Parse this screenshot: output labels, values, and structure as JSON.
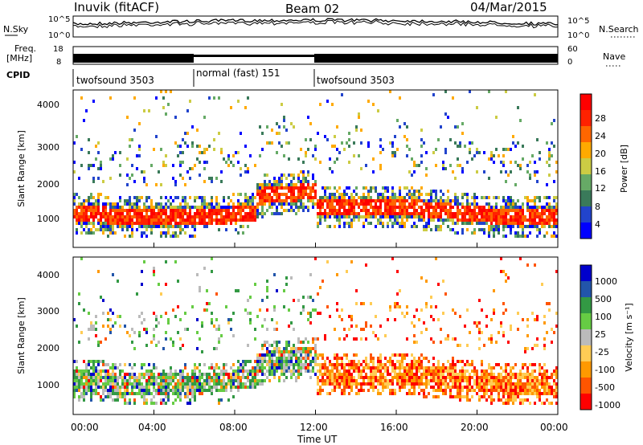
{
  "header": {
    "station": "Inuvik (fitACF)",
    "beam": "Beam 02",
    "date": "04/Mar/2015"
  },
  "strip": {
    "nsky_label": "N.Sky",
    "nsearch_label": "N.Search",
    "noise_left_ticks": [
      "10^5",
      "10^0"
    ],
    "noise_right_ticks": [
      "10^5",
      "10^0"
    ],
    "freq_label_1": "Freq.",
    "freq_label_2": "[MHz]",
    "freq_ticks": [
      "18",
      "8"
    ],
    "nave_label": "Nave",
    "nave_ticks": [
      "60",
      "0"
    ],
    "cpid_label": "CPID",
    "cpid_segments": [
      {
        "name": "twofsound 3503",
        "start_hour": 0,
        "end_hour": 6
      },
      {
        "name": "normal (fast) 151",
        "start_hour": 6,
        "end_hour": 12
      },
      {
        "name": "twofsound 3503",
        "start_hour": 12,
        "end_hour": 24
      }
    ]
  },
  "colors": {
    "power": [
      "#0000ff",
      "#2244cc",
      "#3a7a5a",
      "#66aa66",
      "#cccc44",
      "#ffaa00",
      "#ff6600",
      "#ff2200",
      "#ff0000"
    ],
    "velocity": [
      "#ff0000",
      "#ff5500",
      "#ff9900",
      "#ffcc55",
      "#bbbbbb",
      "#66cc44",
      "#339944",
      "#2255aa",
      "#0000cc"
    ]
  },
  "chart_data": [
    {
      "type": "heatmap",
      "name": "power-panel",
      "ylabel": "Slant Range [km]",
      "yticks": [
        "1000",
        "2000",
        "3000",
        "4000"
      ],
      "ylim": [
        200,
        4500
      ],
      "xlim": [
        0,
        24
      ],
      "colorbar_label": "Power [dB]",
      "colorbar_ticks": [
        "4",
        "8",
        "12",
        "16",
        "20",
        "24",
        "28"
      ],
      "colorbar_range": [
        0,
        32
      ]
    },
    {
      "type": "heatmap",
      "name": "velocity-panel",
      "ylabel": "Slant Range [km]",
      "yticks": [
        "1000",
        "2000",
        "3000",
        "4000"
      ],
      "ylim": [
        200,
        4500
      ],
      "xlim": [
        0,
        24
      ],
      "xticks": [
        "00:00",
        "04:00",
        "08:00",
        "12:00",
        "16:00",
        "20:00",
        "00:00"
      ],
      "xlabel": "Time UT",
      "colorbar_label": "Velocity [m s⁻¹]",
      "colorbar_ticks": [
        "-1000",
        "-500",
        "-100",
        "-25",
        "25",
        "100",
        "500",
        "1000"
      ]
    }
  ]
}
